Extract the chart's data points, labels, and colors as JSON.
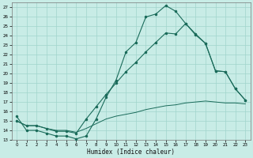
{
  "xlabel": "Humidex (Indice chaleur)",
  "bg_color": "#c8ece6",
  "grid_color": "#a0d4cc",
  "line_color": "#1a6b5a",
  "xlim": [
    -0.5,
    23.5
  ],
  "ylim": [
    13,
    27.5
  ],
  "xticks": [
    0,
    1,
    2,
    3,
    4,
    5,
    6,
    7,
    8,
    9,
    10,
    11,
    12,
    13,
    14,
    15,
    16,
    17,
    18,
    19,
    20,
    21,
    22,
    23
  ],
  "yticks": [
    13,
    14,
    15,
    16,
    17,
    18,
    19,
    20,
    21,
    22,
    23,
    24,
    25,
    26,
    27
  ],
  "curve1_x": [
    0,
    1,
    2,
    3,
    4,
    5,
    6,
    7,
    8,
    9,
    10,
    11,
    12,
    13,
    14,
    15,
    16,
    17,
    18,
    19,
    20,
    21,
    22,
    23
  ],
  "curve1_y": [
    15.5,
    14.0,
    14.0,
    13.7,
    13.4,
    13.4,
    13.1,
    13.4,
    15.2,
    17.5,
    19.3,
    22.3,
    23.3,
    26.0,
    26.3,
    27.2,
    26.6,
    25.3,
    24.2,
    23.2,
    20.3,
    20.2,
    18.4,
    17.2
  ],
  "curve3_x": [
    0,
    1,
    2,
    3,
    4,
    5,
    6,
    7,
    8,
    9,
    10,
    11,
    12,
    13,
    14,
    15,
    16,
    17,
    18,
    19,
    20,
    21,
    22,
    23
  ],
  "curve3_y": [
    15.0,
    14.5,
    14.5,
    14.2,
    13.9,
    13.9,
    13.7,
    15.2,
    16.5,
    17.8,
    19.0,
    20.2,
    21.2,
    22.3,
    23.3,
    24.3,
    24.2,
    25.3,
    24.1,
    23.2,
    20.3,
    20.2,
    18.4,
    17.2
  ],
  "curve4_x": [
    0,
    1,
    2,
    3,
    4,
    5,
    6,
    7,
    8,
    9,
    10,
    11,
    12,
    13,
    14,
    15,
    16,
    17,
    18,
    19,
    20,
    21,
    22,
    23
  ],
  "curve4_y": [
    15.0,
    14.5,
    14.5,
    14.2,
    14.0,
    14.0,
    13.8,
    14.2,
    14.7,
    15.2,
    15.5,
    15.7,
    15.9,
    16.2,
    16.4,
    16.6,
    16.7,
    16.9,
    17.0,
    17.1,
    17.0,
    16.9,
    16.9,
    16.8
  ]
}
